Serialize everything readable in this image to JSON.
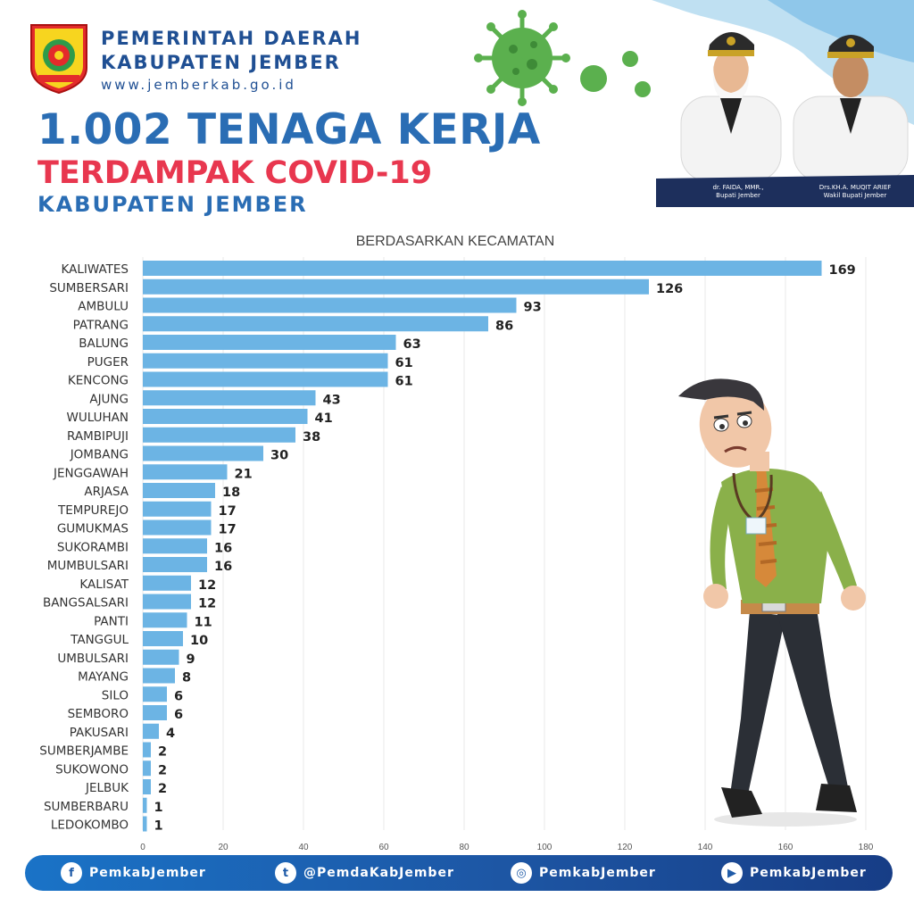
{
  "header": {
    "org_line1": "PEMERINTAH DAERAH",
    "org_line2": "KABUPATEN JEMBER",
    "website": "www.jemberkab.go.id",
    "headline": "1.002 TENAGA KERJA",
    "subheadline": "TERDAMPAK COVID-19",
    "region": "KABUPATEN JEMBER"
  },
  "officials": [
    {
      "name": "dr. FAIDA, MMR.,",
      "title": "Bupati Jember"
    },
    {
      "name": "Drs.KH.A. MUQIT ARIEF",
      "title": "Wakil Bupati Jember"
    }
  ],
  "colors": {
    "bar": "#6cb4e4",
    "headline_blue": "#2a6db4",
    "headline_red": "#e8374f",
    "footer": "#1d56a4"
  },
  "chart_data": {
    "type": "bar",
    "orientation": "horizontal",
    "title": "BERDASARKAN KECAMATAN",
    "categories": [
      "KALIWATES",
      "SUMBERSARI",
      "AMBULU",
      "PATRANG",
      "BALUNG",
      "PUGER",
      "KENCONG",
      "AJUNG",
      "WULUHAN",
      "RAMBIPUJI",
      "JOMBANG",
      "JENGGAWAH",
      "ARJASA",
      "TEMPUREJO",
      "GUMUKMAS",
      "SUKORAMBI",
      "MUMBULSARI",
      "KALISAT",
      "BANGSALSARI",
      "PANTI",
      "TANGGUL",
      "UMBULSARI",
      "MAYANG",
      "SILO",
      "SEMBORO",
      "PAKUSARI",
      "SUMBERJAMBE",
      "SUKOWONO",
      "JELBUK",
      "SUMBERBARU",
      "LEDOKOMBO"
    ],
    "values": [
      169,
      126,
      93,
      86,
      63,
      61,
      61,
      43,
      41,
      38,
      30,
      21,
      18,
      17,
      17,
      16,
      16,
      12,
      12,
      11,
      10,
      9,
      8,
      6,
      6,
      4,
      2,
      2,
      2,
      1,
      1
    ],
    "xlim": [
      0,
      180
    ],
    "xticks": [
      0,
      20,
      40,
      60,
      80,
      100,
      120,
      140,
      160,
      180
    ],
    "grid": true
  },
  "footer": {
    "items": [
      {
        "icon": "facebook-icon",
        "glyph": "f",
        "label": "PemkabJember"
      },
      {
        "icon": "twitter-icon",
        "glyph": "t",
        "label": "@PemdaKabJember"
      },
      {
        "icon": "instagram-icon",
        "glyph": "◎",
        "label": "PemkabJember"
      },
      {
        "icon": "youtube-icon",
        "glyph": "▶",
        "label": "PemkabJember"
      }
    ]
  }
}
